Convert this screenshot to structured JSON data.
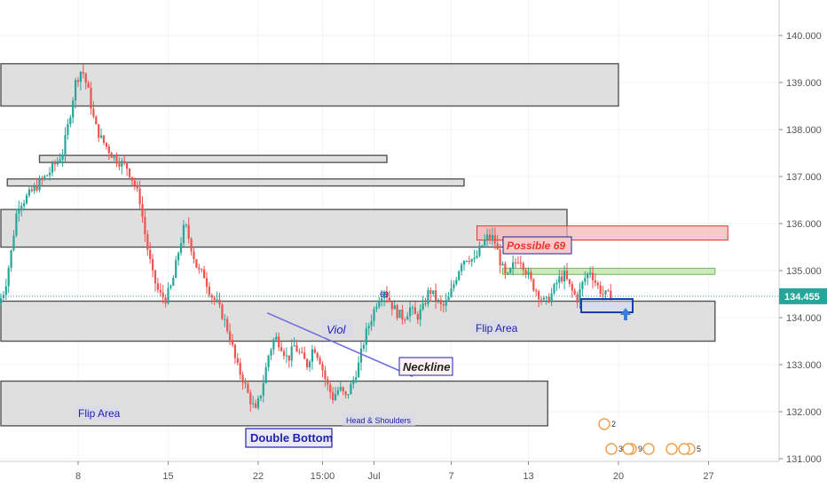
{
  "chart_data": {
    "type": "candlestick",
    "y_axis": {
      "min": 131.0,
      "max": 140.5,
      "side": "right",
      "ticks": [
        "140.000",
        "139.000",
        "138.000",
        "137.000",
        "136.000",
        "135.000",
        "134.000",
        "133.000",
        "132.000",
        "131.000"
      ]
    },
    "x_axis": {
      "ticks": [
        {
          "label": "8",
          "d": 8
        },
        {
          "label": "15",
          "d": 15
        },
        {
          "label": "22",
          "d": 22
        },
        {
          "label": "15:00",
          "d": 27
        },
        {
          "label": "Jul",
          "d": 31
        },
        {
          "label": "7",
          "d": 37
        },
        {
          "label": "13",
          "d": 43
        },
        {
          "label": "20",
          "d": 50
        },
        {
          "label": "27",
          "d": 57
        }
      ],
      "min_d": 2,
      "max_d": 63
    },
    "current_price": {
      "value": 134.455,
      "label": "134.455",
      "color": "#26a69a"
    },
    "colors": {
      "up": "#26a69a",
      "down": "#ef5350",
      "zone_fill": "#d9d9d9",
      "zone_stroke": "#555555",
      "resistance": "#f4b4b4",
      "support": "#b9e1a3",
      "trend": "#6f6fe0",
      "label_blue": "#2222aa",
      "accent_red": "#e8332b"
    },
    "zones": [
      {
        "name": "zone-top",
        "d0": 2,
        "d1": 50,
        "y_low": 138.5,
        "y_high": 139.4
      },
      {
        "name": "zone-thin-1",
        "d0": 5,
        "d1": 32,
        "y_low": 137.3,
        "y_high": 137.45
      },
      {
        "name": "zone-thin-2",
        "d0": 2.5,
        "d1": 38,
        "y_low": 136.8,
        "y_high": 136.95
      },
      {
        "name": "zone-mid",
        "d0": 2,
        "d1": 46,
        "y_low": 135.5,
        "y_high": 136.3
      },
      {
        "name": "zone-flip-upper",
        "d0": 2,
        "d1": 57.5,
        "y_low": 133.5,
        "y_high": 134.35
      },
      {
        "name": "zone-flip-lower",
        "d0": 2,
        "d1": 44.5,
        "y_low": 131.7,
        "y_high": 132.65
      }
    ],
    "colored_zones": [
      {
        "name": "resistance-zone",
        "d0": 39,
        "d1": 58.5,
        "y_low": 135.65,
        "y_high": 135.95,
        "kind": "resistance"
      },
      {
        "name": "support-zone",
        "d0": 41,
        "d1": 57.5,
        "y_low": 134.92,
        "y_high": 135.05,
        "kind": "support"
      }
    ],
    "trendline": {
      "from": {
        "d": 22.7,
        "y": 134.1
      },
      "to": {
        "d": 34,
        "y": 132.75
      }
    },
    "annotations": {
      "viol": "Viol",
      "neckline": "Neckline",
      "flip_area_right": "Flip Area",
      "flip_area_left": "Flip Area",
      "head_shoulders": "Head & Shoulders",
      "double_bottom": "Double Bottom",
      "possible_69": "Possible 69",
      "small_69": "69"
    },
    "event_badges": [
      "2",
      "3",
      "9",
      "5"
    ],
    "path": [
      [
        2,
        134.3
      ],
      [
        2.5,
        134.6
      ],
      [
        3,
        135.4
      ],
      [
        3.5,
        136.4
      ],
      [
        4,
        136.5
      ],
      [
        5,
        136.8
      ],
      [
        6,
        137.1
      ],
      [
        7,
        137.5
      ],
      [
        7.5,
        138.2
      ],
      [
        8,
        139.0
      ],
      [
        8.5,
        139.3
      ],
      [
        9,
        138.8
      ],
      [
        9.5,
        138.1
      ],
      [
        10,
        137.8
      ],
      [
        11,
        137.4
      ],
      [
        12,
        137.2
      ],
      [
        12.5,
        136.9
      ],
      [
        13,
        136.5
      ],
      [
        13.5,
        135.6
      ],
      [
        14,
        134.9
      ],
      [
        14.5,
        134.5
      ],
      [
        15,
        134.4
      ],
      [
        15.5,
        134.7
      ],
      [
        16,
        135.4
      ],
      [
        16.5,
        136.0
      ],
      [
        17,
        135.5
      ],
      [
        17.5,
        135.0
      ],
      [
        18,
        134.9
      ],
      [
        18.5,
        134.5
      ],
      [
        19,
        134.3
      ],
      [
        19.5,
        134.0
      ],
      [
        20,
        133.6
      ],
      [
        20.5,
        133.0
      ],
      [
        21,
        132.7
      ],
      [
        21.5,
        132.3
      ],
      [
        22,
        132.0
      ],
      [
        22.5,
        132.5
      ],
      [
        23,
        133.2
      ],
      [
        23.5,
        133.6
      ],
      [
        24,
        133.4
      ],
      [
        24.5,
        133.1
      ],
      [
        25,
        133.4
      ],
      [
        25.5,
        133.2
      ],
      [
        26,
        133.0
      ],
      [
        26.5,
        133.4
      ],
      [
        27,
        133.1
      ],
      [
        27.5,
        132.6
      ],
      [
        28,
        132.3
      ],
      [
        28.5,
        132.5
      ],
      [
        29,
        132.3
      ],
      [
        29.5,
        132.6
      ],
      [
        30,
        133.0
      ],
      [
        30.5,
        133.6
      ],
      [
        31,
        134.0
      ],
      [
        31.5,
        134.4
      ],
      [
        32,
        134.6
      ],
      [
        32.5,
        134.3
      ],
      [
        33,
        134.1
      ],
      [
        33.5,
        134.0
      ],
      [
        34,
        134.2
      ],
      [
        34.5,
        134.0
      ],
      [
        35,
        134.2
      ],
      [
        35.5,
        134.6
      ],
      [
        36,
        134.4
      ],
      [
        36.5,
        134.2
      ],
      [
        37,
        134.4
      ],
      [
        37.5,
        134.8
      ],
      [
        38,
        135.2
      ],
      [
        38.5,
        135.3
      ],
      [
        39,
        135.2
      ],
      [
        39.5,
        135.5
      ],
      [
        40,
        135.7
      ],
      [
        40.5,
        135.7
      ],
      [
        41,
        135.2
      ],
      [
        41.5,
        134.8
      ],
      [
        42,
        135.1
      ],
      [
        42.5,
        135.3
      ],
      [
        43,
        135.0
      ],
      [
        43.5,
        134.7
      ],
      [
        44,
        134.5
      ],
      [
        44.5,
        134.3
      ],
      [
        45,
        134.5
      ],
      [
        45.5,
        134.8
      ],
      [
        46,
        134.9
      ],
      [
        46.5,
        134.6
      ],
      [
        47,
        134.4
      ],
      [
        47.5,
        134.8
      ],
      [
        48,
        135.0
      ],
      [
        48.5,
        134.7
      ],
      [
        49,
        134.5
      ],
      [
        49.5,
        134.46
      ]
    ]
  }
}
